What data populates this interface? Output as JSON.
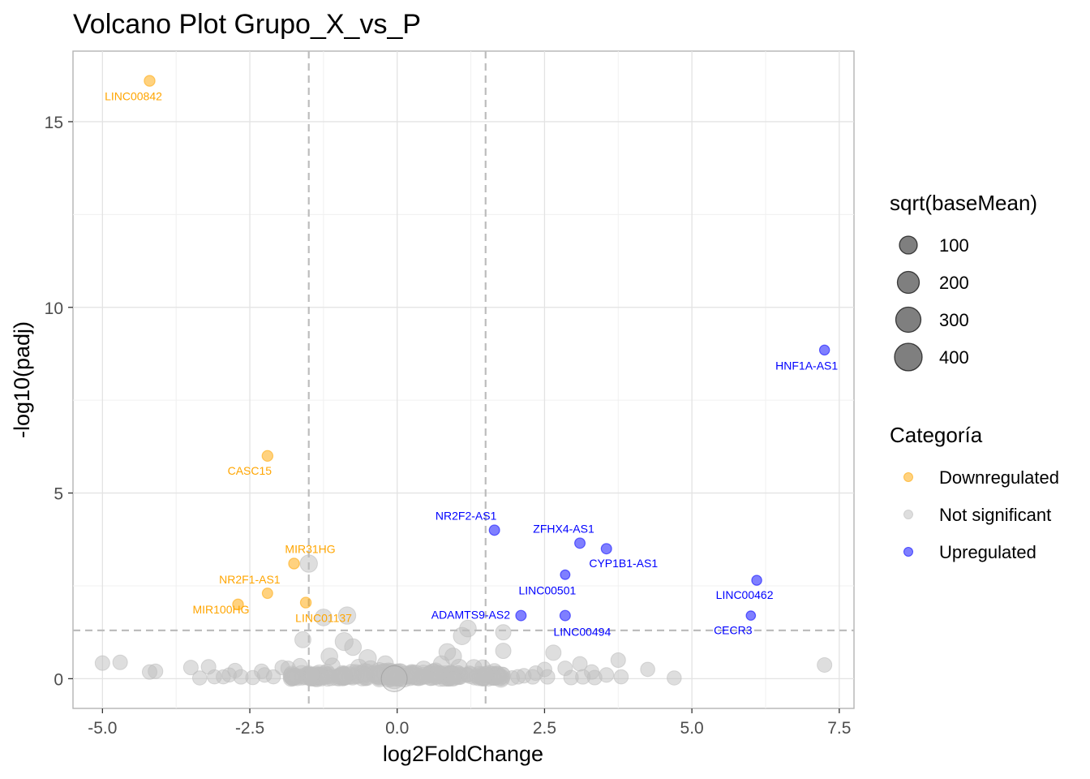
{
  "chart_data": {
    "type": "scatter",
    "title": "Volcano Plot Grupo_X_vs_P",
    "xlabel": "log2FoldChange",
    "ylabel": "-log10(padj)",
    "xlim": [
      -5.5,
      7.75
    ],
    "ylim": [
      -0.8,
      16.9
    ],
    "x_ticks": [
      -5.0,
      -2.5,
      0.0,
      2.5,
      5.0,
      7.5
    ],
    "x_tick_labels": [
      "-5.0",
      "-2.5",
      "0.0",
      "2.5",
      "5.0",
      "7.5"
    ],
    "y_ticks": [
      0,
      5,
      10,
      15
    ],
    "y_tick_labels": [
      "0",
      "5",
      "10",
      "15"
    ],
    "grid": true,
    "vlines": [
      -1.5,
      1.5
    ],
    "hline": 1.3,
    "colors": {
      "Downregulated": "#FFA500",
      "Not significant": "#BEBEBE",
      "Upregulated": "#0000FF"
    },
    "legend_size": {
      "title": "sqrt(baseMean)",
      "entries": [
        {
          "label": "100",
          "value": 100
        },
        {
          "label": "200",
          "value": 200
        },
        {
          "label": "300",
          "value": 300
        },
        {
          "label": "400",
          "value": 400
        }
      ]
    },
    "legend_color": {
      "title": "Categoría",
      "entries": [
        {
          "label": "Downregulated",
          "color": "#FFA500"
        },
        {
          "label": "Not significant",
          "color": "#BEBEBE"
        },
        {
          "label": "Upregulated",
          "color": "#0000FF"
        }
      ]
    },
    "labeled_points": [
      {
        "label": "LINC00842",
        "x": -4.2,
        "y": 16.1,
        "size": 100,
        "category": "Downregulated"
      },
      {
        "label": "CASC15",
        "x": -2.2,
        "y": 6.0,
        "size": 100,
        "category": "Downregulated"
      },
      {
        "label": "MIR31HG",
        "x": -1.75,
        "y": 3.1,
        "size": 100,
        "category": "Downregulated"
      },
      {
        "label": "NR2F1-AS1",
        "x": -2.2,
        "y": 2.3,
        "size": 90,
        "category": "Downregulated"
      },
      {
        "label": "MIR100HG",
        "x": -2.7,
        "y": 2.0,
        "size": 100,
        "category": "Downregulated"
      },
      {
        "label": "LINC01137",
        "x": -1.55,
        "y": 2.05,
        "size": 100,
        "category": "Downregulated"
      },
      {
        "label": "NR2F2-AS1",
        "x": 1.65,
        "y": 4.0,
        "size": 90,
        "category": "Upregulated"
      },
      {
        "label": "ZFHX4-AS1",
        "x": 3.1,
        "y": 3.65,
        "size": 90,
        "category": "Upregulated"
      },
      {
        "label": "CYP1B1-AS1",
        "x": 3.55,
        "y": 3.5,
        "size": 90,
        "category": "Upregulated"
      },
      {
        "label": "LINC00501",
        "x": 2.85,
        "y": 2.8,
        "size": 70,
        "category": "Upregulated"
      },
      {
        "label": "ADAMTS9-AS2",
        "x": 2.1,
        "y": 1.7,
        "size": 90,
        "category": "Upregulated"
      },
      {
        "label": "LINC00494",
        "x": 2.85,
        "y": 1.7,
        "size": 90,
        "category": "Upregulated"
      },
      {
        "label": "HNF1A-AS1",
        "x": 7.25,
        "y": 8.85,
        "size": 80,
        "category": "Upregulated"
      },
      {
        "label": "LINC00462",
        "x": 6.1,
        "y": 2.65,
        "size": 80,
        "category": "Upregulated"
      },
      {
        "label": "CECR3",
        "x": 6.0,
        "y": 1.7,
        "size": 65,
        "category": "Upregulated"
      }
    ],
    "background_points": [
      {
        "x": -5.0,
        "y": 0.42,
        "size": 60
      },
      {
        "x": -4.7,
        "y": 0.44,
        "size": 60
      },
      {
        "x": -4.2,
        "y": 0.18,
        "size": 60
      },
      {
        "x": -4.1,
        "y": 0.2,
        "size": 60
      },
      {
        "x": -3.5,
        "y": 0.3,
        "size": 60
      },
      {
        "x": -3.35,
        "y": 0.02,
        "size": 55
      },
      {
        "x": -3.2,
        "y": 0.32,
        "size": 60
      },
      {
        "x": -3.1,
        "y": 0.05,
        "size": 55
      },
      {
        "x": -2.95,
        "y": 0.05,
        "size": 55
      },
      {
        "x": -2.85,
        "y": 0.1,
        "size": 55
      },
      {
        "x": -2.75,
        "y": 0.22,
        "size": 60
      },
      {
        "x": -2.65,
        "y": 0.05,
        "size": 60
      },
      {
        "x": -2.45,
        "y": 0.03,
        "size": 55
      },
      {
        "x": -2.3,
        "y": 0.2,
        "size": 60
      },
      {
        "x": -2.25,
        "y": 0.1,
        "size": 60
      },
      {
        "x": -2.1,
        "y": 0.05,
        "size": 55
      },
      {
        "x": -1.95,
        "y": 0.3,
        "size": 60
      },
      {
        "x": -1.85,
        "y": 0.28,
        "size": 60
      },
      {
        "x": -1.75,
        "y": 0.02,
        "size": 55
      },
      {
        "x": -1.65,
        "y": 0.35,
        "size": 60
      },
      {
        "x": -1.6,
        "y": 1.05,
        "size": 80
      },
      {
        "x": -1.5,
        "y": 3.1,
        "size": 100
      },
      {
        "x": -1.25,
        "y": 1.65,
        "size": 90
      },
      {
        "x": -1.15,
        "y": 0.6,
        "size": 90
      },
      {
        "x": -1.1,
        "y": 0.35,
        "size": 70
      },
      {
        "x": -0.85,
        "y": 1.7,
        "size": 100
      },
      {
        "x": -0.9,
        "y": 1.0,
        "size": 110
      },
      {
        "x": -0.75,
        "y": 0.85,
        "size": 90
      },
      {
        "x": -0.65,
        "y": 0.3,
        "size": 90
      },
      {
        "x": -0.5,
        "y": 0.55,
        "size": 100
      },
      {
        "x": -0.45,
        "y": 0.25,
        "size": 100
      },
      {
        "x": -0.3,
        "y": 0.2,
        "size": 100
      },
      {
        "x": -0.2,
        "y": 0.4,
        "size": 80
      },
      {
        "x": -0.1,
        "y": 0.08,
        "size": 120
      },
      {
        "x": -0.05,
        "y": 0.02,
        "size": 180
      },
      {
        "x": 0.05,
        "y": 0.05,
        "size": 130
      },
      {
        "x": 0.15,
        "y": 0.1,
        "size": 110
      },
      {
        "x": 0.25,
        "y": 0.15,
        "size": 100
      },
      {
        "x": 0.35,
        "y": 0.05,
        "size": 100
      },
      {
        "x": 0.45,
        "y": 0.25,
        "size": 90
      },
      {
        "x": 0.55,
        "y": 0.12,
        "size": 90
      },
      {
        "x": 0.65,
        "y": 0.2,
        "size": 90
      },
      {
        "x": 0.75,
        "y": 0.4,
        "size": 80
      },
      {
        "x": 0.85,
        "y": 0.72,
        "size": 90
      },
      {
        "x": 0.95,
        "y": 0.6,
        "size": 90
      },
      {
        "x": 1.05,
        "y": 0.3,
        "size": 90
      },
      {
        "x": 1.1,
        "y": 1.15,
        "size": 100
      },
      {
        "x": 1.2,
        "y": 1.35,
        "size": 90
      },
      {
        "x": 1.3,
        "y": 0.3,
        "size": 80
      },
      {
        "x": 1.45,
        "y": 0.3,
        "size": 70
      },
      {
        "x": 1.55,
        "y": 0.1,
        "size": 70
      },
      {
        "x": 1.65,
        "y": 0.2,
        "size": 70
      },
      {
        "x": 1.8,
        "y": 1.25,
        "size": 70
      },
      {
        "x": 1.8,
        "y": 0.75,
        "size": 70
      },
      {
        "x": 1.95,
        "y": 0.02,
        "size": 60
      },
      {
        "x": 2.05,
        "y": 0.05,
        "size": 60
      },
      {
        "x": 2.15,
        "y": 0.08,
        "size": 60
      },
      {
        "x": 2.3,
        "y": 0.05,
        "size": 60
      },
      {
        "x": 2.35,
        "y": 0.15,
        "size": 60
      },
      {
        "x": 2.5,
        "y": 0.25,
        "size": 60
      },
      {
        "x": 2.55,
        "y": 0.05,
        "size": 60
      },
      {
        "x": 2.65,
        "y": 0.7,
        "size": 70
      },
      {
        "x": 2.85,
        "y": 0.28,
        "size": 60
      },
      {
        "x": 2.95,
        "y": 0.03,
        "size": 60
      },
      {
        "x": 3.1,
        "y": 0.4,
        "size": 60
      },
      {
        "x": 3.15,
        "y": 0.05,
        "size": 60
      },
      {
        "x": 3.3,
        "y": 0.18,
        "size": 60
      },
      {
        "x": 3.35,
        "y": 0.03,
        "size": 60
      },
      {
        "x": 3.55,
        "y": 0.1,
        "size": 60
      },
      {
        "x": 3.75,
        "y": 0.5,
        "size": 60
      },
      {
        "x": 3.8,
        "y": 0.05,
        "size": 55
      },
      {
        "x": 4.25,
        "y": 0.25,
        "size": 55
      },
      {
        "x": 4.7,
        "y": 0.02,
        "size": 55
      },
      {
        "x": 7.25,
        "y": 0.37,
        "size": 60
      }
    ]
  }
}
